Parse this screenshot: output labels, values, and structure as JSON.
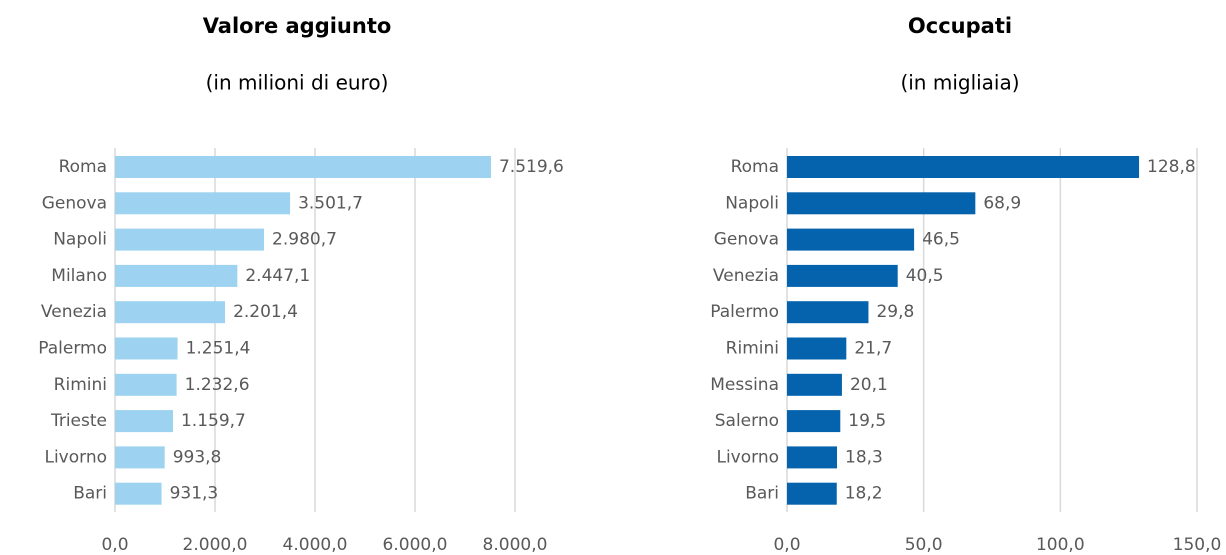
{
  "chart_data": [
    {
      "type": "bar",
      "orientation": "horizontal",
      "title": "Valore aggiunto",
      "subtitle": "(in milioni di euro)",
      "categories": [
        "Roma",
        "Genova",
        "Napoli",
        "Milano",
        "Venezia",
        "Palermo",
        "Rimini",
        "Trieste",
        "Livorno",
        "Bari"
      ],
      "values": [
        7519.6,
        3501.7,
        2980.7,
        2447.1,
        2201.4,
        1251.4,
        1232.6,
        1159.7,
        993.8,
        931.3
      ],
      "value_labels": [
        "7.519,6",
        "3.501,7",
        "2.980,7",
        "2.447,1",
        "2.201,4",
        "1.251,4",
        "1.232,6",
        "1.159,7",
        "993,8",
        "931,3"
      ],
      "color": "#9dd3f0",
      "xlim": [
        0,
        8000
      ],
      "xticks": [
        {
          "value": 0,
          "label": "0,0"
        },
        {
          "value": 2000,
          "label": "2.000,0"
        },
        {
          "value": 4000,
          "label": "4.000,0"
        },
        {
          "value": 6000,
          "label": "6.000,0"
        },
        {
          "value": 8000,
          "label": "8.000,0"
        }
      ],
      "grid": true
    },
    {
      "type": "bar",
      "orientation": "horizontal",
      "title": "Occupati",
      "subtitle": "(in migliaia)",
      "categories": [
        "Roma",
        "Napoli",
        "Genova",
        "Venezia",
        "Palermo",
        "Rimini",
        "Messina",
        "Salerno",
        "Livorno",
        "Bari"
      ],
      "values": [
        128.8,
        68.9,
        46.5,
        40.5,
        29.8,
        21.7,
        20.1,
        19.5,
        18.3,
        18.2
      ],
      "value_labels": [
        "128,8",
        "68,9",
        "46,5",
        "40,5",
        "29,8",
        "21,7",
        "20,1",
        "19,5",
        "18,3",
        "18,2"
      ],
      "color": "#0563ae",
      "xlim": [
        0,
        150
      ],
      "xticks": [
        {
          "value": 0,
          "label": "0,0"
        },
        {
          "value": 50,
          "label": "50,0"
        },
        {
          "value": 100,
          "label": "100,0"
        },
        {
          "value": 150,
          "label": "150,0"
        }
      ],
      "grid": true
    }
  ]
}
